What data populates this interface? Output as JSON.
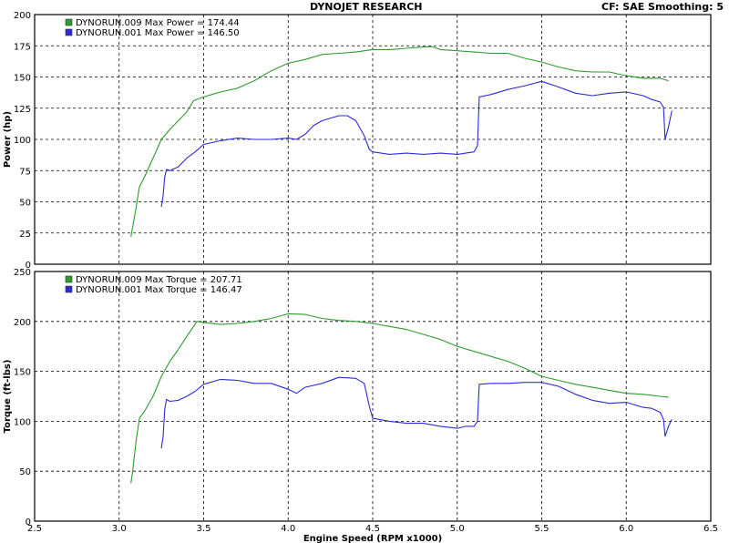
{
  "header": {
    "title": "DYNOJET RESEARCH",
    "cf_info": "CF: SAE  Smoothing: 5"
  },
  "colors": {
    "run_009": "#2e9b2e",
    "run_001": "#2b2bd6",
    "grid": "#000000",
    "plot_border": "#000000"
  },
  "chart_data": [
    {
      "type": "line",
      "title": "",
      "xlabel": "",
      "ylabel": "Power (hp)",
      "xlim": [
        2.5,
        6.5
      ],
      "ylim": [
        0,
        200
      ],
      "yticks": [
        0,
        25,
        50,
        75,
        100,
        125,
        150,
        175,
        200
      ],
      "grid": true,
      "legend_position": "top-left",
      "legend": [
        {
          "label": "DYNORUN.009 Max Power = 174.44",
          "color": "#2e9b2e"
        },
        {
          "label": "DYNORUN.001 Max Power = 146.50",
          "color": "#2b2bd6"
        }
      ],
      "series": [
        {
          "name": "DYNORUN.009",
          "color": "#2e9b2e",
          "points": [
            [
              3.07,
              22
            ],
            [
              3.08,
              30
            ],
            [
              3.1,
              45
            ],
            [
              3.12,
              62
            ],
            [
              3.15,
              70
            ],
            [
              3.2,
              85
            ],
            [
              3.25,
              100
            ],
            [
              3.3,
              108
            ],
            [
              3.35,
              115
            ],
            [
              3.4,
              122
            ],
            [
              3.44,
              131
            ],
            [
              3.5,
              134
            ],
            [
              3.55,
              136
            ],
            [
              3.6,
              138
            ],
            [
              3.7,
              141
            ],
            [
              3.8,
              147
            ],
            [
              3.9,
              155
            ],
            [
              4.0,
              161
            ],
            [
              4.1,
              164
            ],
            [
              4.2,
              168
            ],
            [
              4.3,
              169
            ],
            [
              4.4,
              170
            ],
            [
              4.5,
              172
            ],
            [
              4.6,
              172
            ],
            [
              4.7,
              173
            ],
            [
              4.8,
              174
            ],
            [
              4.85,
              174.4
            ],
            [
              4.9,
              172
            ],
            [
              5.0,
              171
            ],
            [
              5.1,
              170
            ],
            [
              5.2,
              169
            ],
            [
              5.3,
              169
            ],
            [
              5.4,
              165
            ],
            [
              5.5,
              162
            ],
            [
              5.6,
              158
            ],
            [
              5.7,
              155
            ],
            [
              5.8,
              154
            ],
            [
              5.9,
              154
            ],
            [
              6.0,
              151
            ],
            [
              6.1,
              149
            ],
            [
              6.2,
              149
            ],
            [
              6.25,
              147
            ]
          ]
        },
        {
          "name": "DYNORUN.001",
          "color": "#2b2bd6",
          "points": [
            [
              3.25,
              46
            ],
            [
              3.26,
              55
            ],
            [
              3.27,
              70
            ],
            [
              3.28,
              76
            ],
            [
              3.3,
              75
            ],
            [
              3.35,
              78
            ],
            [
              3.4,
              85
            ],
            [
              3.45,
              90
            ],
            [
              3.5,
              96
            ],
            [
              3.6,
              99
            ],
            [
              3.7,
              101
            ],
            [
              3.8,
              100
            ],
            [
              3.9,
              100
            ],
            [
              4.0,
              101
            ],
            [
              4.05,
              100
            ],
            [
              4.1,
              104
            ],
            [
              4.15,
              111
            ],
            [
              4.2,
              115
            ],
            [
              4.3,
              119
            ],
            [
              4.35,
              119
            ],
            [
              4.4,
              115
            ],
            [
              4.45,
              103
            ],
            [
              4.48,
              92
            ],
            [
              4.5,
              90
            ],
            [
              4.6,
              88
            ],
            [
              4.7,
              89
            ],
            [
              4.8,
              88
            ],
            [
              4.9,
              89
            ],
            [
              5.0,
              88
            ],
            [
              5.05,
              89
            ],
            [
              5.1,
              90
            ],
            [
              5.12,
              95
            ],
            [
              5.13,
              134
            ],
            [
              5.2,
              136
            ],
            [
              5.3,
              140
            ],
            [
              5.4,
              143
            ],
            [
              5.5,
              146.5
            ],
            [
              5.6,
              142
            ],
            [
              5.7,
              137
            ],
            [
              5.8,
              135
            ],
            [
              5.9,
              137
            ],
            [
              6.0,
              138
            ],
            [
              6.1,
              135
            ],
            [
              6.15,
              132
            ],
            [
              6.2,
              130
            ],
            [
              6.22,
              126
            ],
            [
              6.23,
              100
            ],
            [
              6.25,
              110
            ],
            [
              6.27,
              123
            ]
          ]
        }
      ]
    },
    {
      "type": "line",
      "title": "",
      "xlabel": "Engine Speed (RPM x1000)",
      "ylabel": "Torque (ft-lbs)",
      "xlim": [
        2.5,
        6.5
      ],
      "ylim": [
        0,
        250
      ],
      "xticks": [
        "2.5",
        "3.0",
        "3.5",
        "4.0",
        "4.5",
        "5.0",
        "5.5",
        "6.0",
        "6.5"
      ],
      "yticks": [
        0,
        50,
        100,
        150,
        200,
        250
      ],
      "grid": true,
      "legend_position": "top-left",
      "legend": [
        {
          "label": "DYNORUN.009 Max Torque = 207.71",
          "color": "#2e9b2e"
        },
        {
          "label": "DYNORUN.001 Max Torque = 146.47",
          "color": "#2b2bd6"
        }
      ],
      "series": [
        {
          "name": "DYNORUN.009",
          "color": "#2e9b2e",
          "points": [
            [
              3.07,
              38
            ],
            [
              3.08,
              50
            ],
            [
              3.1,
              80
            ],
            [
              3.12,
              103
            ],
            [
              3.15,
              110
            ],
            [
              3.2,
              125
            ],
            [
              3.25,
              145
            ],
            [
              3.3,
              160
            ],
            [
              3.35,
              172
            ],
            [
              3.4,
              185
            ],
            [
              3.44,
              195
            ],
            [
              3.46,
              200
            ],
            [
              3.5,
              199
            ],
            [
              3.6,
              197
            ],
            [
              3.7,
              198
            ],
            [
              3.8,
              200
            ],
            [
              3.9,
              203
            ],
            [
              4.0,
              207.7
            ],
            [
              4.1,
              207
            ],
            [
              4.2,
              203
            ],
            [
              4.3,
              201
            ],
            [
              4.4,
              200
            ],
            [
              4.5,
              198
            ],
            [
              4.6,
              195
            ],
            [
              4.7,
              192
            ],
            [
              4.8,
              187
            ],
            [
              4.9,
              182
            ],
            [
              5.0,
              175
            ],
            [
              5.1,
              170
            ],
            [
              5.2,
              165
            ],
            [
              5.3,
              160
            ],
            [
              5.4,
              153
            ],
            [
              5.5,
              145
            ],
            [
              5.6,
              141
            ],
            [
              5.7,
              137
            ],
            [
              5.8,
              134
            ],
            [
              5.9,
              131
            ],
            [
              6.0,
              128
            ],
            [
              6.1,
              127
            ],
            [
              6.2,
              125
            ],
            [
              6.25,
              124
            ]
          ]
        },
        {
          "name": "DYNORUN.001",
          "color": "#2b2bd6",
          "points": [
            [
              3.25,
              73
            ],
            [
              3.26,
              85
            ],
            [
              3.27,
              112
            ],
            [
              3.28,
              122
            ],
            [
              3.3,
              120
            ],
            [
              3.35,
              121
            ],
            [
              3.4,
              125
            ],
            [
              3.45,
              130
            ],
            [
              3.5,
              137
            ],
            [
              3.6,
              142
            ],
            [
              3.7,
              141
            ],
            [
              3.8,
              138
            ],
            [
              3.9,
              138
            ],
            [
              4.0,
              132
            ],
            [
              4.05,
              128
            ],
            [
              4.1,
              134
            ],
            [
              4.2,
              138
            ],
            [
              4.3,
              144
            ],
            [
              4.4,
              143
            ],
            [
              4.45,
              138
            ],
            [
              4.48,
              115
            ],
            [
              4.5,
              103
            ],
            [
              4.6,
              100
            ],
            [
              4.7,
              98
            ],
            [
              4.8,
              98
            ],
            [
              4.9,
              95
            ],
            [
              5.0,
              93
            ],
            [
              5.05,
              95
            ],
            [
              5.1,
              95
            ],
            [
              5.12,
              100
            ],
            [
              5.13,
              137
            ],
            [
              5.2,
              138
            ],
            [
              5.3,
              138
            ],
            [
              5.4,
              139
            ],
            [
              5.5,
              139
            ],
            [
              5.6,
              135
            ],
            [
              5.7,
              127
            ],
            [
              5.8,
              121
            ],
            [
              5.9,
              118
            ],
            [
              6.0,
              119
            ],
            [
              6.1,
              114
            ],
            [
              6.15,
              113
            ],
            [
              6.2,
              109
            ],
            [
              6.22,
              102
            ],
            [
              6.23,
              85
            ],
            [
              6.25,
              95
            ],
            [
              6.27,
              102
            ]
          ]
        }
      ]
    }
  ]
}
